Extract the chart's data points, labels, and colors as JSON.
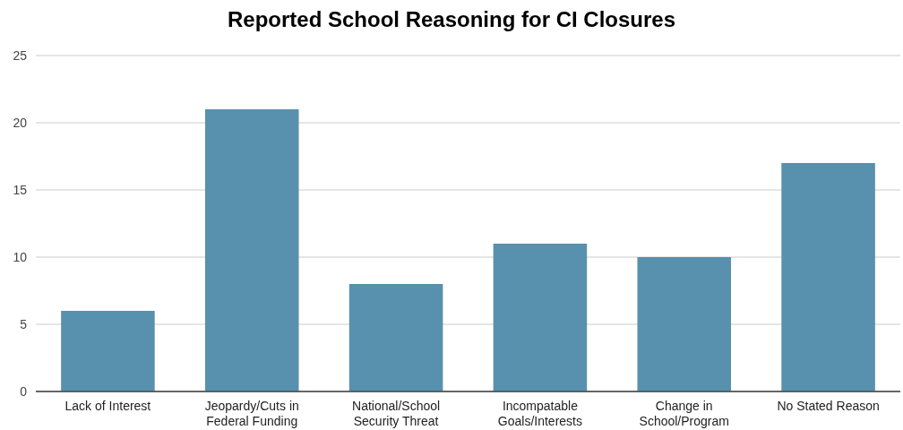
{
  "chart_data": {
    "type": "bar",
    "title": "Reported School Reasoning for CI Closures",
    "categories": [
      "Lack of Interest",
      "Jeopardy/Cuts in Federal Funding",
      "National/School Security Threat",
      "Incompatable Goals/Interests",
      "Change in School/Program",
      "No Stated Reason"
    ],
    "values": [
      6,
      21,
      8,
      11,
      10,
      17
    ],
    "color": "#5891ae",
    "ylim": [
      0,
      25
    ],
    "yticks": [
      0,
      5,
      10,
      15,
      20,
      25
    ],
    "grid": "y"
  }
}
